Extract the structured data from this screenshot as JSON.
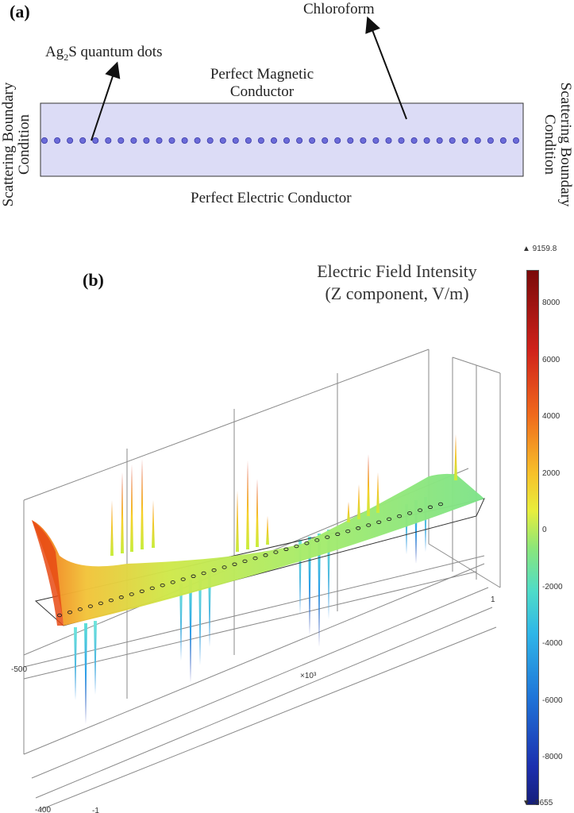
{
  "panel_a": {
    "label": "(a)",
    "chloroform": "Chloroform",
    "qd_label_pre": "Ag",
    "qd_label_sub": "2",
    "qd_label_post": "S quantum dots",
    "pmc_line1": "Perfect Magnetic",
    "pmc_line2": "Conductor",
    "pec": "Perfect Electric Conductor",
    "scatter_left": [
      "Scattering Boundary",
      "Condition"
    ],
    "scatter_right": [
      "Scattering Boundary",
      "Condition"
    ],
    "dot_count": 38,
    "colors": {
      "region_fill": "#dcdcf6",
      "dot": "#6b6bd8"
    }
  },
  "panel_b": {
    "label": "(b)",
    "title_line1": "Electric Field Intensity",
    "title_line2": "(Z component, V/m)",
    "colorbar": {
      "max_label": "▲ 9159.8",
      "min_label": "▼ -9655",
      "min": -9655,
      "max": 9159.8,
      "ticks": [
        "8000",
        "6000",
        "4000",
        "2000",
        "0",
        "-2000",
        "-4000",
        "-6000",
        "-8000"
      ],
      "tick_values": [
        8000,
        6000,
        4000,
        2000,
        0,
        -2000,
        -4000,
        -6000,
        -8000
      ]
    },
    "axis_labels": {
      "a1": "1",
      "a500": "-500",
      "a400": "-400",
      "am1": "-1",
      "scale": "×10³"
    }
  }
}
